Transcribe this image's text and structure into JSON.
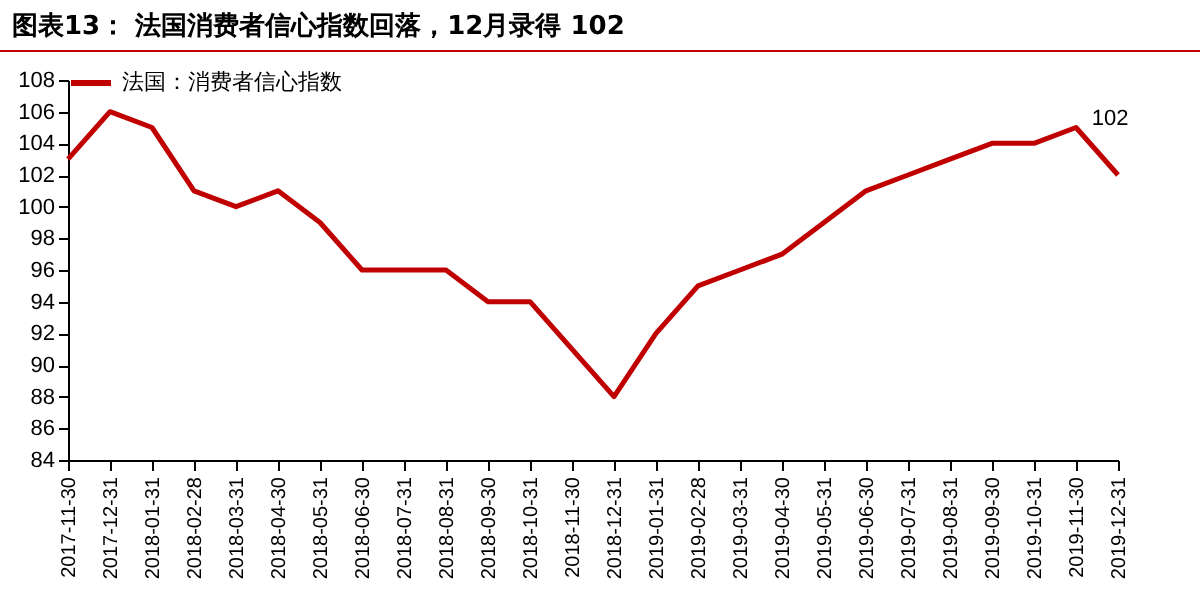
{
  "chart_data": {
    "type": "line",
    "title": "图表13：  法国消费者信心指数回落，12月录得 102",
    "categories": [
      "2017-11-30",
      "2017-12-31",
      "2018-01-31",
      "2018-02-28",
      "2018-03-31",
      "2018-04-30",
      "2018-05-31",
      "2018-06-30",
      "2018-07-31",
      "2018-08-31",
      "2018-09-30",
      "2018-10-31",
      "2018-11-30",
      "2018-12-31",
      "2019-01-31",
      "2019-02-28",
      "2019-03-31",
      "2019-04-30",
      "2019-05-31",
      "2019-06-30",
      "2019-07-31",
      "2019-08-31",
      "2019-09-30",
      "2019-10-31",
      "2019-11-30",
      "2019-12-31"
    ],
    "series": [
      {
        "name": "法国：消费者信心指数",
        "color": "#c00000",
        "values": [
          103,
          106,
          105,
          101,
          100,
          101,
          99,
          96,
          96,
          96,
          94,
          94,
          91,
          88,
          92,
          95,
          96,
          97,
          99,
          101,
          102,
          103,
          104,
          104,
          105,
          102
        ]
      }
    ],
    "ylim": [
      84,
      108
    ],
    "yticks": [
      84,
      86,
      88,
      90,
      92,
      94,
      96,
      98,
      100,
      102,
      104,
      106,
      108
    ],
    "annotations": [
      {
        "text": "102",
        "x": "2019-12-31",
        "y": 102
      }
    ],
    "legend": "top",
    "grid": false,
    "marker": "none",
    "line_style": "solid"
  }
}
